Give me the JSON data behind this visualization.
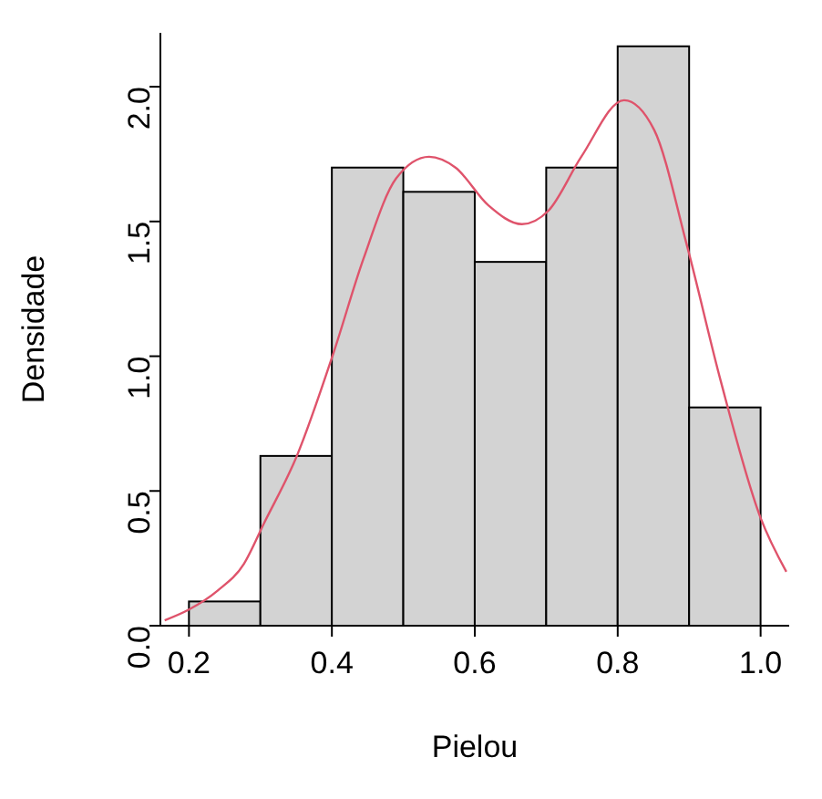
{
  "chart_data": {
    "type": "histogram",
    "xlabel": "Pielou",
    "ylabel": "Densidade",
    "bins": [
      0.2,
      0.3,
      0.4,
      0.5,
      0.6,
      0.7,
      0.8,
      0.9,
      1.0
    ],
    "values": [
      0.09,
      0.63,
      1.7,
      1.61,
      1.35,
      1.7,
      2.15,
      0.81
    ],
    "color": "#d3d3d3",
    "series": [
      {
        "type": "line",
        "color": "#df536b",
        "x": [
          0.166,
          0.2,
          0.24,
          0.277,
          0.305,
          0.351,
          0.402,
          0.444,
          0.49,
          0.536,
          0.573,
          0.619,
          0.666,
          0.703,
          0.749,
          0.809,
          0.851,
          0.897,
          0.944,
          1.0,
          1.036
        ],
        "values": [
          0.02,
          0.06,
          0.13,
          0.23,
          0.38,
          0.63,
          1.01,
          1.36,
          1.66,
          1.74,
          1.7,
          1.56,
          1.49,
          1.54,
          1.74,
          1.95,
          1.84,
          1.41,
          0.91,
          0.4,
          0.2
        ]
      }
    ],
    "xlim": [
      0.16,
      1.04
    ],
    "xticks": [
      0.2,
      0.4,
      0.6,
      0.8,
      {
        "value": 1,
        "label": "1.0"
      }
    ],
    "ylim": [
      0,
      2.2
    ],
    "yticks": [
      {
        "value": 0,
        "label": "0.0"
      },
      0.5,
      {
        "value": 1,
        "label": "1.0"
      },
      1.5,
      {
        "value": 2,
        "label": "2.0"
      }
    ]
  }
}
